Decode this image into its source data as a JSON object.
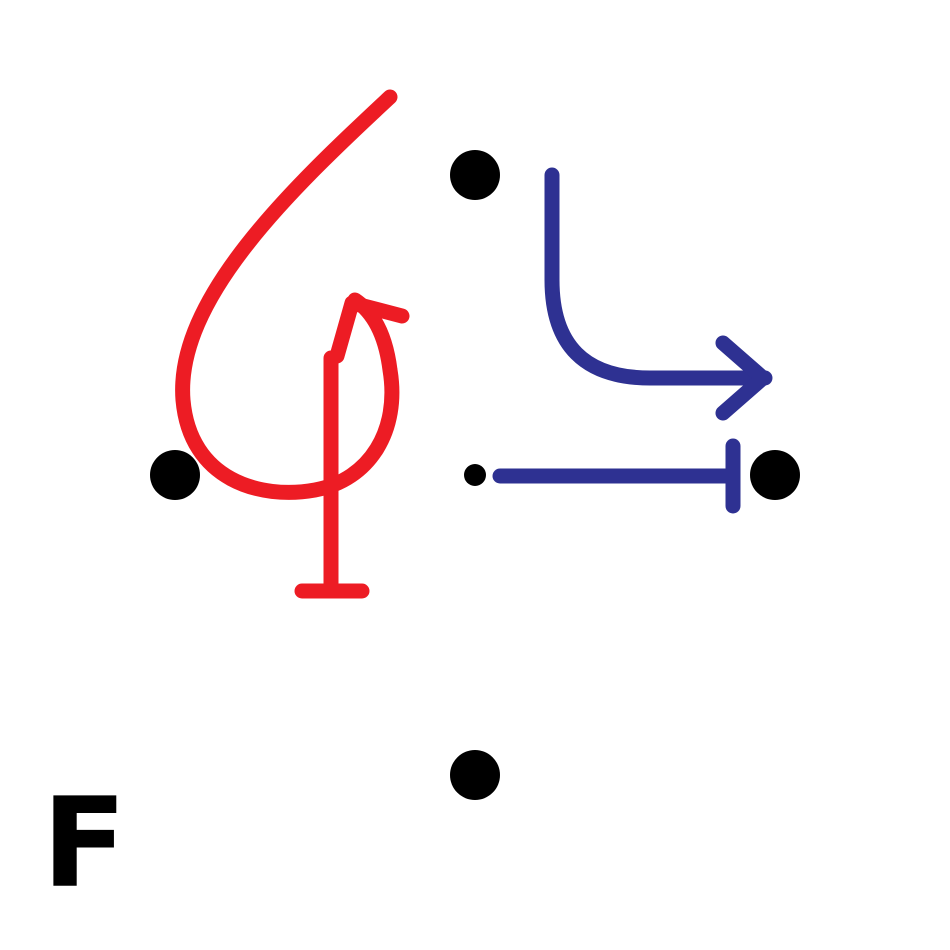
{
  "panel_label": "F",
  "colors": {
    "background": "#ffffff",
    "dot": "#000000",
    "red_stroke": "#ed1c24",
    "blue_stroke": "#2e3192"
  },
  "elements": {
    "dots": [
      "top",
      "left",
      "center",
      "right",
      "bottom"
    ],
    "red_strokes": [
      "curved-loop-arrow",
      "flat-end-bar"
    ],
    "blue_strokes": [
      "bent-arrow",
      "flat-end-line"
    ]
  }
}
